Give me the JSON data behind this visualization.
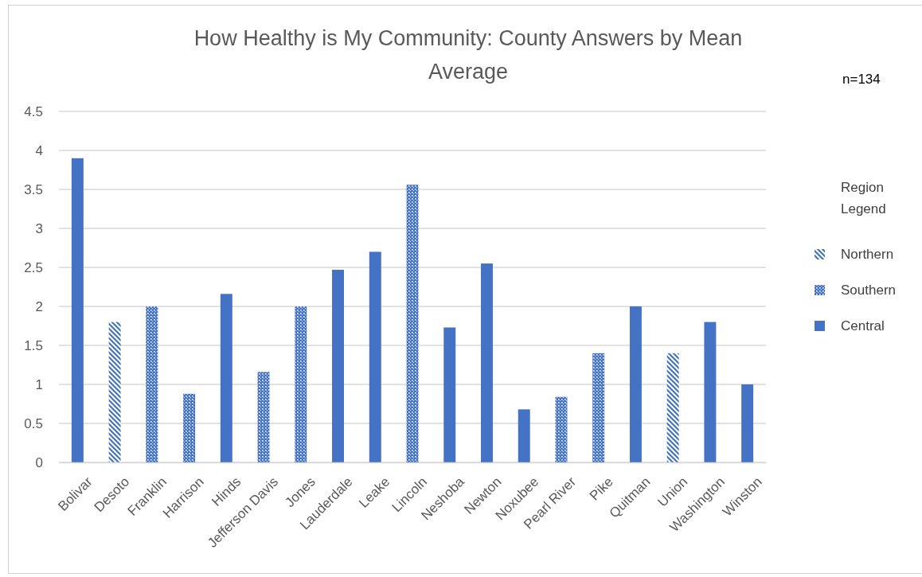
{
  "chart_data": {
    "type": "bar",
    "title": "How Healthy is My Community: County Answers by Mean Average",
    "categories": [
      "Bolivar",
      "Desoto",
      "Franklin",
      "Harrison",
      "Hinds",
      "Jefferson Davis",
      "Jones",
      "Lauderdale",
      "Leake",
      "Lincoln",
      "Neshoba",
      "Newton",
      "Noxubee",
      "Pearl River",
      "Pike",
      "Quitman",
      "Union",
      "Washington",
      "Winston"
    ],
    "series": [
      {
        "name": "Northern",
        "color": "#4472c4",
        "values": [
          null,
          1.8,
          null,
          null,
          null,
          null,
          null,
          null,
          null,
          null,
          null,
          null,
          null,
          null,
          null,
          null,
          1.4,
          null,
          null
        ]
      },
      {
        "name": "Southern",
        "color": "#4472c4",
        "values": [
          null,
          null,
          2.0,
          0.88,
          null,
          1.16,
          2.0,
          null,
          null,
          3.56,
          null,
          null,
          null,
          0.84,
          1.4,
          null,
          null,
          null,
          null
        ]
      },
      {
        "name": "Central",
        "color": "#4472c4",
        "values": [
          3.9,
          null,
          null,
          null,
          2.16,
          null,
          null,
          2.47,
          2.7,
          null,
          1.73,
          2.55,
          0.68,
          null,
          null,
          2.0,
          null,
          1.8,
          1.0
        ]
      }
    ],
    "stacked": true,
    "ylim": [
      0,
      4.5
    ],
    "yticks": [
      0,
      0.5,
      1,
      1.5,
      2,
      2.5,
      3,
      3.5,
      4,
      4.5
    ],
    "grid": "y",
    "legend": "right",
    "legend_title": "Region Legend",
    "annotations": [
      "n=134"
    ]
  }
}
